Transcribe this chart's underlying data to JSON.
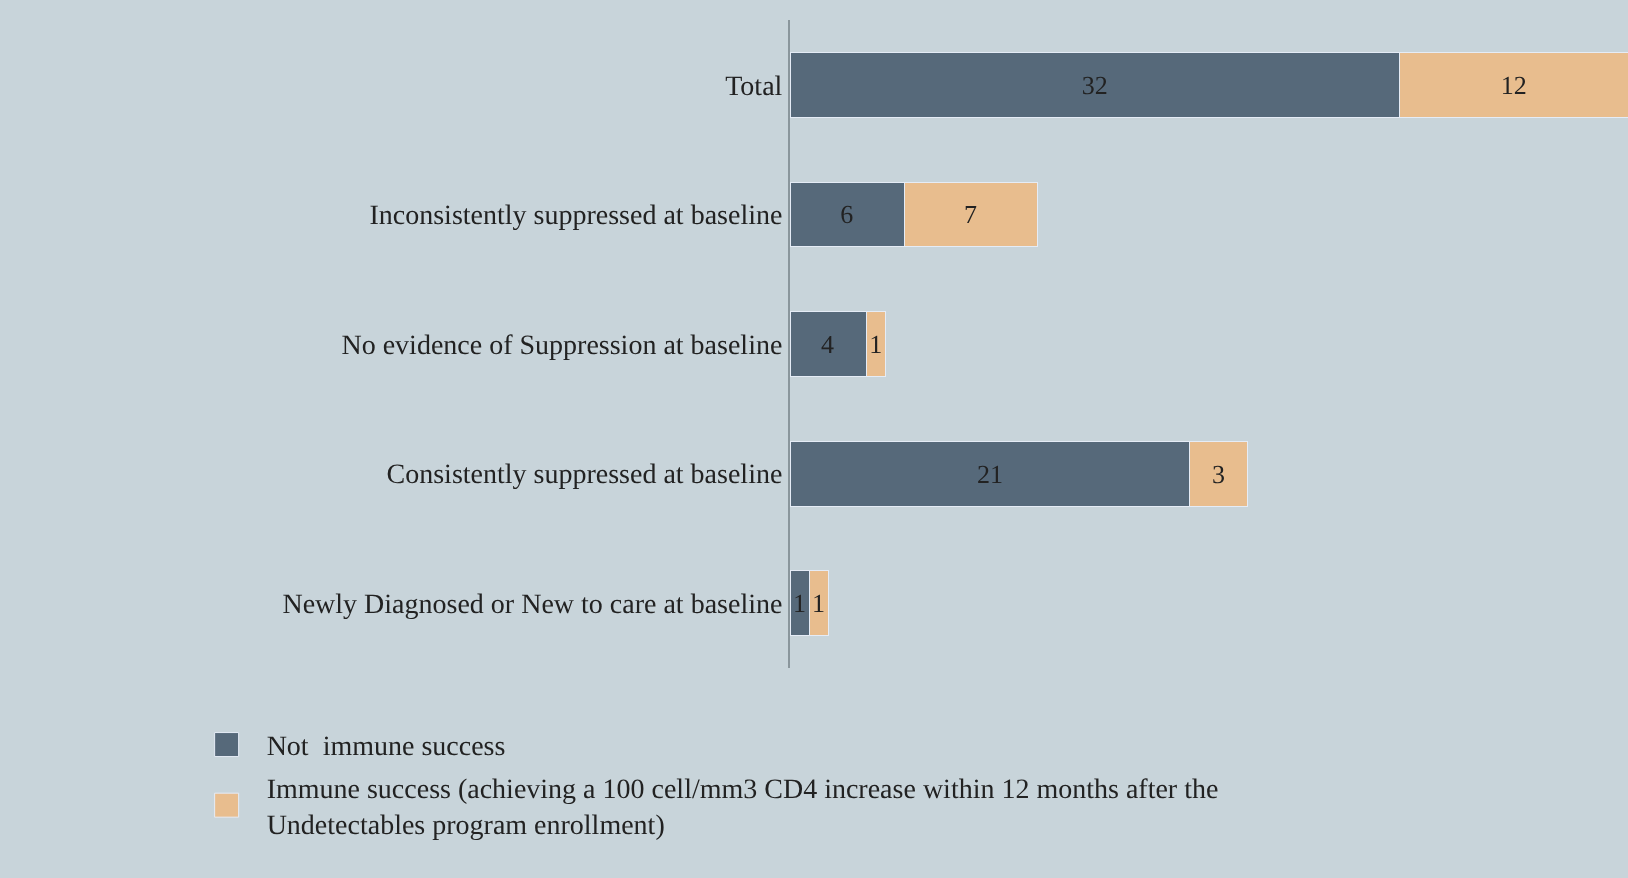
{
  "chart_data": {
    "type": "bar",
    "orientation": "horizontal",
    "stacked": true,
    "data_labels": true,
    "tick_labels": "y",
    "grid": false,
    "legend": "bottom left",
    "categories": [
      "Total",
      "Inconsistently suppressed at baseline",
      "No evidence of Suppression at baseline",
      "Consistently suppressed at baseline",
      "Newly Diagnosed or New to care at baseline"
    ],
    "xlim": [
      0,
      44
    ],
    "series": [
      {
        "name": "Not  immune success",
        "color": "#56697a",
        "values": [
          32,
          6,
          4,
          21,
          1
        ]
      },
      {
        "name": "Immune success (achieving a 100 cell/mm3 CD4 increase within 12 months after the Undetectables program enrollment)",
        "color": "#e8bd8e",
        "values": [
          12,
          7,
          1,
          3,
          1
        ]
      }
    ]
  }
}
